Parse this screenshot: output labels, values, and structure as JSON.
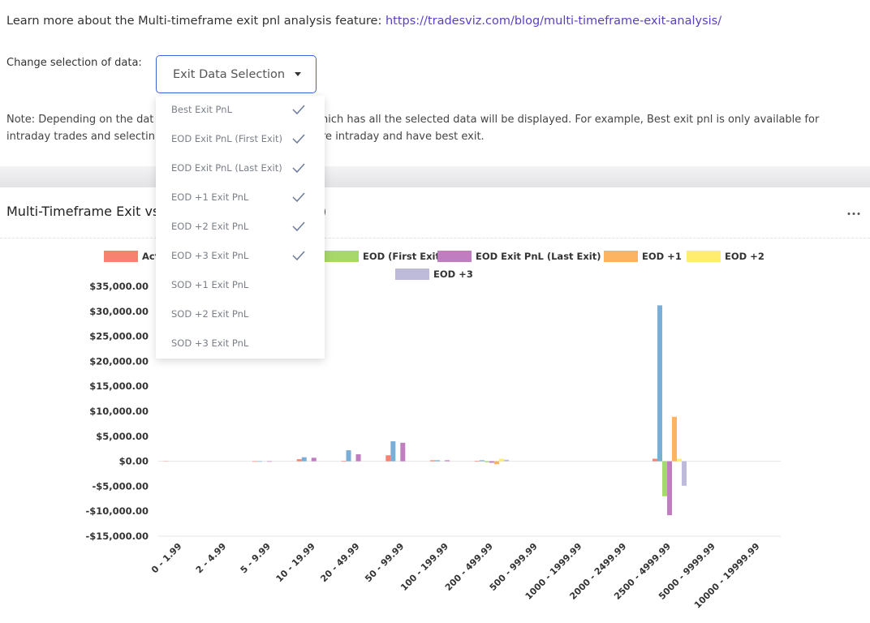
{
  "header": {
    "text": "Learn more about the Multi-timeframe exit pnl analysis feature:",
    "link": "https://tradesviz.com/blog/multi-timeframe-exit-analysis/"
  },
  "selector": {
    "label": "Change selection of data:",
    "button": "Exit Data Selection",
    "options": [
      {
        "label": "Best Exit PnL",
        "checked": true
      },
      {
        "label": "EOD Exit PnL (First Exit)",
        "checked": true
      },
      {
        "label": "EOD Exit PnL (Last Exit)",
        "checked": true
      },
      {
        "label": "EOD +1 Exit PnL",
        "checked": true
      },
      {
        "label": "EOD +2 Exit PnL",
        "checked": true
      },
      {
        "label": "EOD +3 Exit PnL",
        "checked": true
      },
      {
        "label": "SOD +1 Exit PnL",
        "checked": false
      },
      {
        "label": "SOD +2 Exit PnL",
        "checked": false
      },
      {
        "label": "SOD +3 Exit PnL",
        "checked": false
      }
    ]
  },
  "note": {
    "line1": [
      "Note: Depending on the dat",
      "hich has all the selected data will be displayed. For example, Best exit pnl is only available for"
    ],
    "line2": [
      "intraday trades and selectin",
      "re intraday and have best exit."
    ]
  },
  "card": {
    "title": [
      "Multi-Timeframe Exit vs",
      ")"
    ]
  },
  "chart_data": {
    "type": "bar",
    "categories": [
      "0 - 1.99",
      "2 - 4.99",
      "5 - 9.99",
      "10 - 19.99",
      "20 - 49.99",
      "50 - 99.99",
      "100 - 199.99",
      "200 - 499.99",
      "500 - 999.99",
      "1000 - 1999.99",
      "2000 - 2499.99",
      "2500 - 4999.99",
      "5000 - 9999.99",
      "10000 - 19999.99"
    ],
    "series": [
      {
        "name": "Act",
        "color": "#f7826f",
        "values": [
          -50,
          0,
          -100,
          400,
          100,
          1200,
          200,
          100,
          0,
          0,
          0,
          500,
          0,
          0
        ]
      },
      {
        "name": null,
        "color": "#7aaed6",
        "values": [
          0,
          0,
          -100,
          800,
          2200,
          4000,
          200,
          200,
          0,
          0,
          0,
          31200,
          0,
          0
        ]
      },
      {
        "name": "EOD (First Exit)",
        "color": "#a8d86a",
        "values": [
          0,
          0,
          0,
          0,
          0,
          0,
          0,
          -200,
          0,
          0,
          0,
          -7000,
          0,
          0
        ]
      },
      {
        "name": "EOD Exit PnL (Last Exit)",
        "color": "#c07dc0",
        "values": [
          0,
          0,
          -100,
          700,
          1400,
          3700,
          200,
          -300,
          0,
          0,
          0,
          -10800,
          0,
          0
        ]
      },
      {
        "name": "EOD +1",
        "color": "#fdb462",
        "values": [
          0,
          0,
          0,
          0,
          0,
          0,
          0,
          -600,
          0,
          0,
          0,
          8900,
          0,
          0
        ]
      },
      {
        "name": "EOD +2",
        "color": "#ffed6f",
        "values": [
          0,
          0,
          0,
          0,
          0,
          0,
          0,
          500,
          0,
          0,
          0,
          500,
          0,
          0
        ]
      },
      {
        "name": "EOD +3",
        "color": "#bebada",
        "values": [
          0,
          0,
          0,
          0,
          0,
          0,
          0,
          300,
          0,
          0,
          0,
          -4900,
          0,
          0
        ]
      }
    ],
    "ylim": [
      -15000,
      35000
    ],
    "yticks": [
      {
        "value": -15000,
        "label": "-$15,000.00"
      },
      {
        "value": -10000,
        "label": "-$10,000.00"
      },
      {
        "value": -5000,
        "label": "-$5,000.00"
      },
      {
        "value": 0,
        "label": "$0.00"
      },
      {
        "value": 5000,
        "label": "$5,000.00"
      },
      {
        "value": 10000,
        "label": "$10,000.00"
      },
      {
        "value": 15000,
        "label": "$15,000.00"
      },
      {
        "value": 20000,
        "label": "$20,000.00"
      },
      {
        "value": 25000,
        "label": "$25,000.00"
      },
      {
        "value": 30000,
        "label": "$30,000.00"
      },
      {
        "value": 35000,
        "label": "$35,000.00"
      }
    ],
    "grid": false
  }
}
